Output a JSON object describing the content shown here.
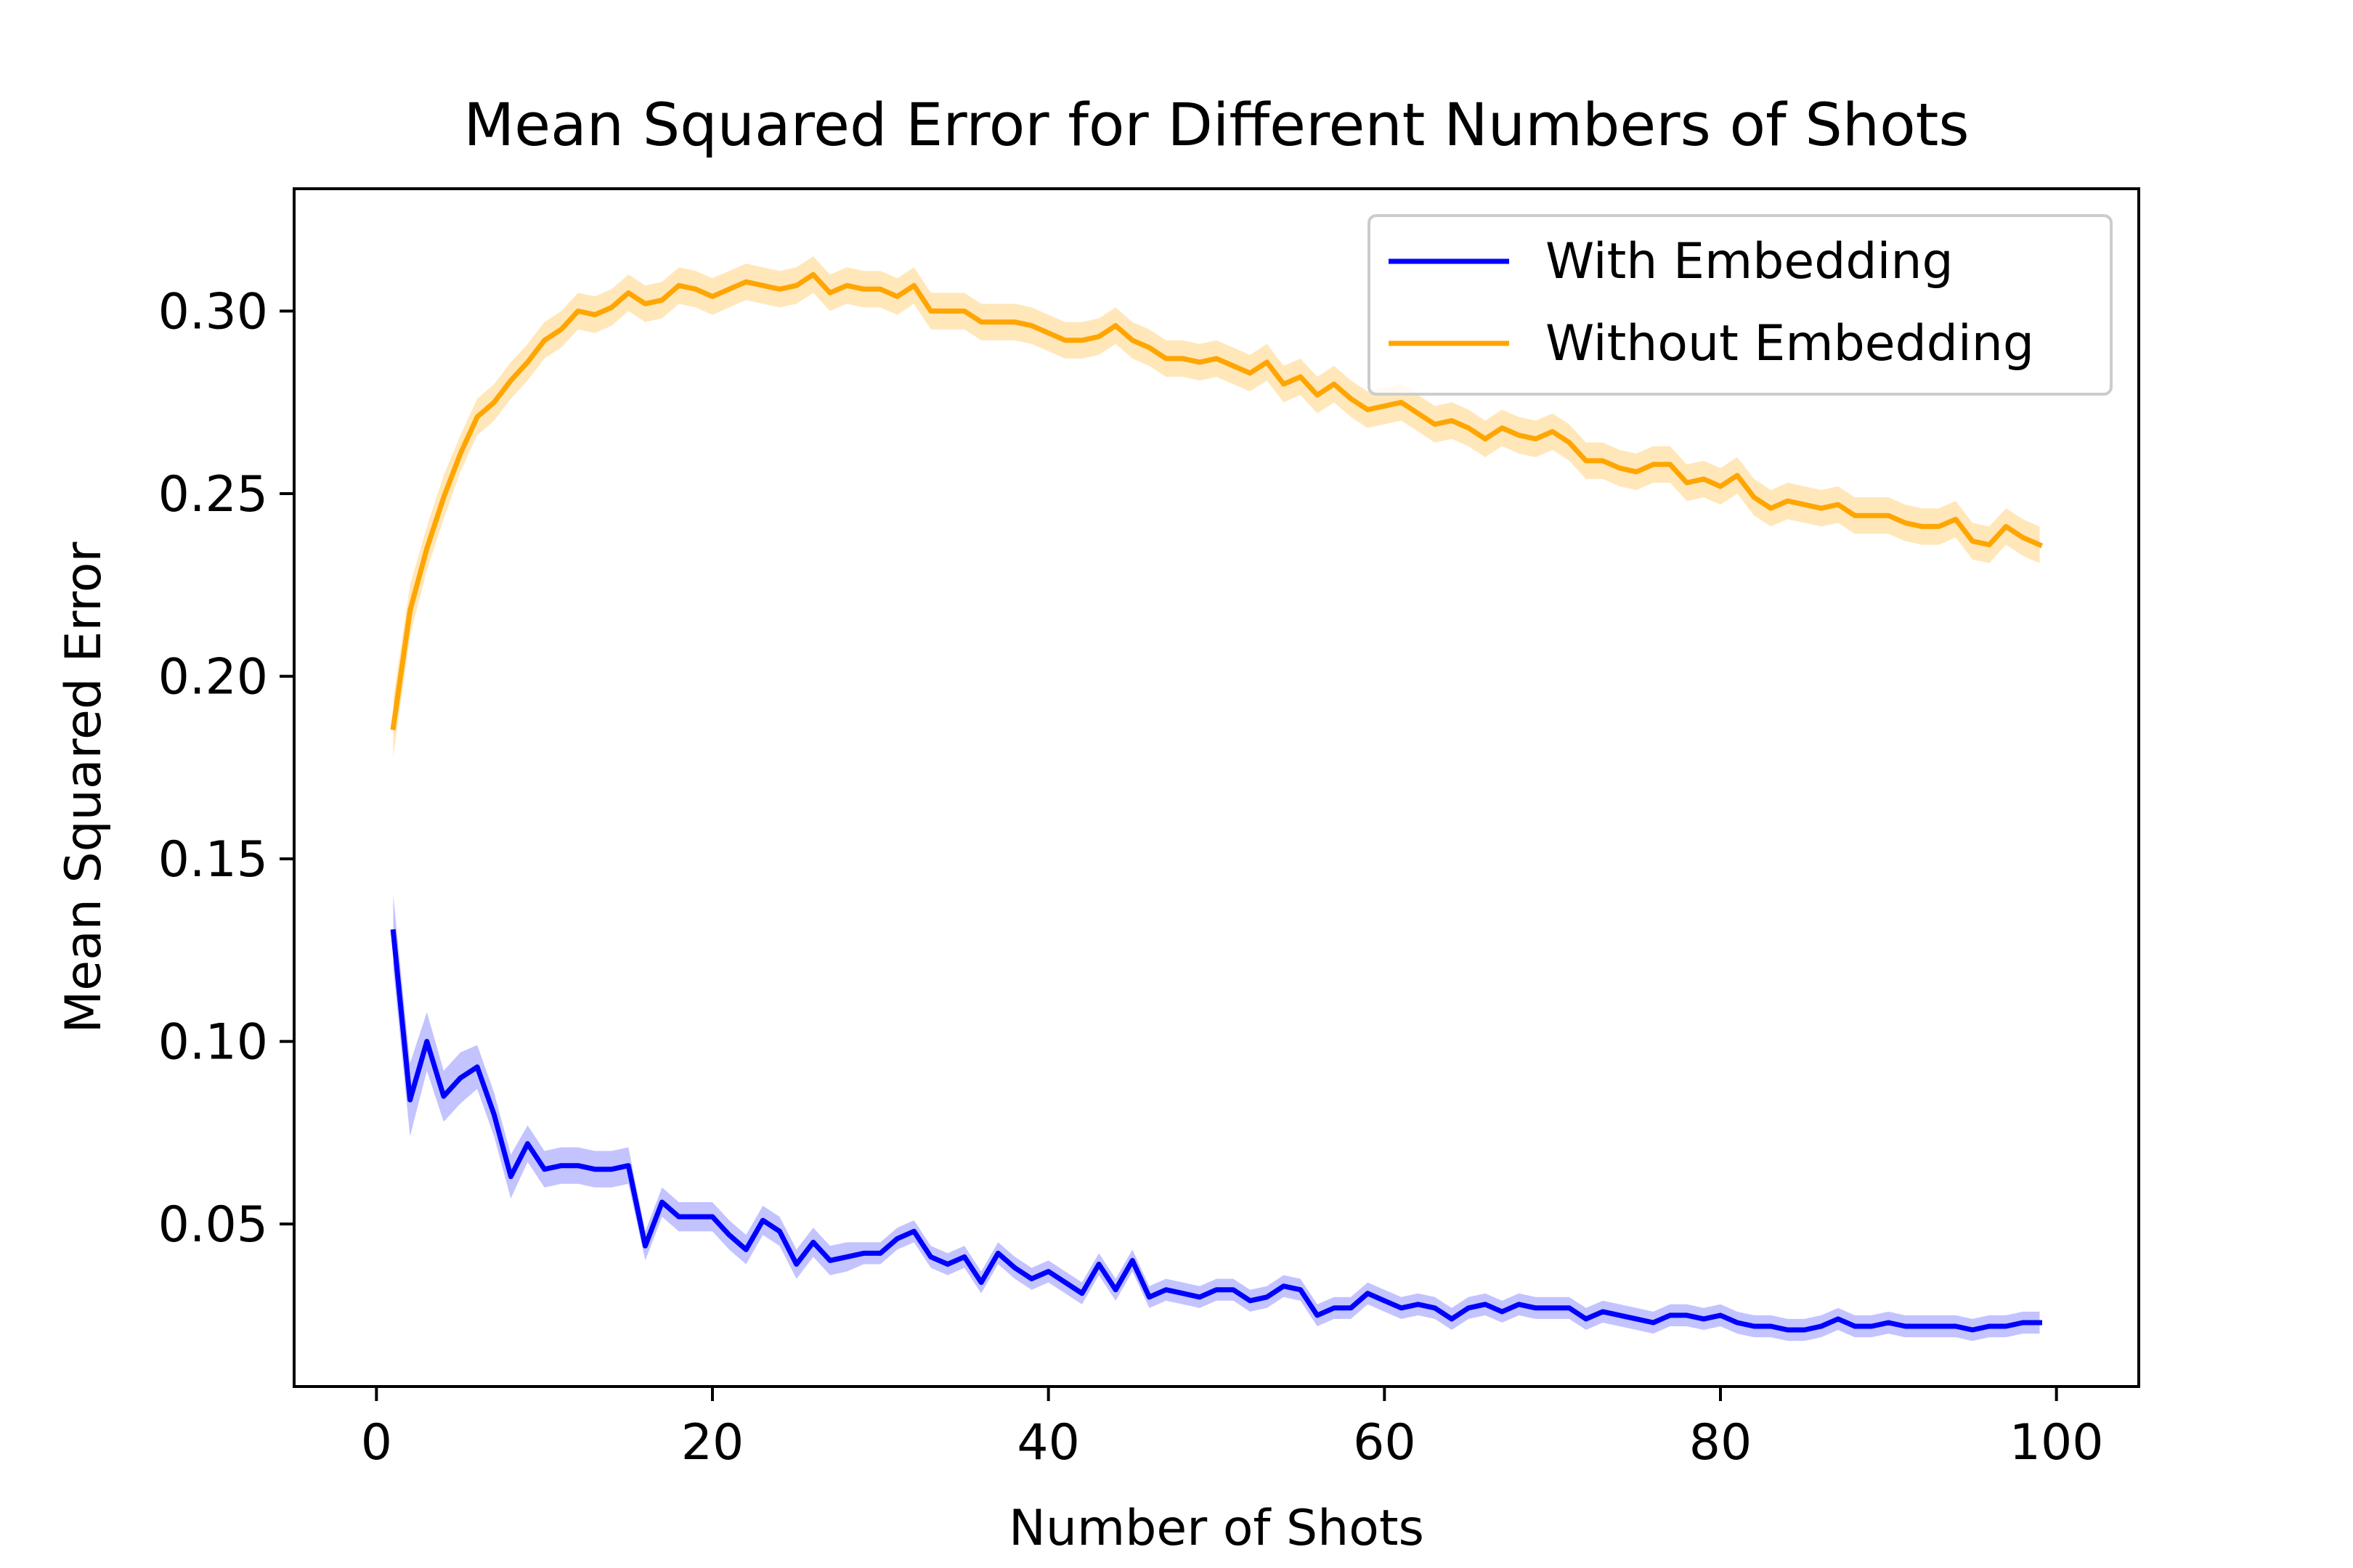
{
  "chart_data": {
    "type": "line",
    "title": "Mean Squared Error for Different Numbers of Shots",
    "xlabel": "Number of Shots",
    "ylabel": "Mean Squared Error",
    "xlim": [
      -4.9,
      104.9
    ],
    "ylim": [
      0.0055,
      0.3335
    ],
    "xticks": [
      0,
      20,
      40,
      60,
      80,
      100
    ],
    "xtick_labels": [
      "0",
      "20",
      "40",
      "60",
      "80",
      "100"
    ],
    "yticks": [
      0.05,
      0.1,
      0.15,
      0.2,
      0.25,
      0.3
    ],
    "ytick_labels": [
      "0.05",
      "0.10",
      "0.15",
      "0.20",
      "0.25",
      "0.30"
    ],
    "grid": false,
    "legend_position": "upper right",
    "x": [
      1,
      2,
      3,
      4,
      5,
      6,
      7,
      8,
      9,
      10,
      11,
      12,
      13,
      14,
      15,
      16,
      17,
      18,
      19,
      20,
      21,
      22,
      23,
      24,
      25,
      26,
      27,
      28,
      29,
      30,
      31,
      32,
      33,
      34,
      35,
      36,
      37,
      38,
      39,
      40,
      41,
      42,
      43,
      44,
      45,
      46,
      47,
      48,
      49,
      50,
      51,
      52,
      53,
      54,
      55,
      56,
      57,
      58,
      59,
      60,
      61,
      62,
      63,
      64,
      65,
      66,
      67,
      68,
      69,
      70,
      71,
      72,
      73,
      74,
      75,
      76,
      77,
      78,
      79,
      80,
      81,
      82,
      83,
      84,
      85,
      86,
      87,
      88,
      89,
      90,
      91,
      92,
      93,
      94,
      95,
      96,
      97,
      98,
      99
    ],
    "series": [
      {
        "name": "With Embedding",
        "color": "#0000ff",
        "band_color": "#7b7bff",
        "values": [
          0.13,
          0.084,
          0.1,
          0.085,
          0.09,
          0.093,
          0.08,
          0.063,
          0.072,
          0.065,
          0.066,
          0.066,
          0.065,
          0.065,
          0.066,
          0.044,
          0.056,
          0.052,
          0.052,
          0.052,
          0.047,
          0.043,
          0.051,
          0.048,
          0.039,
          0.045,
          0.04,
          0.041,
          0.042,
          0.042,
          0.046,
          0.048,
          0.041,
          0.039,
          0.041,
          0.034,
          0.042,
          0.038,
          0.035,
          0.037,
          0.034,
          0.031,
          0.039,
          0.032,
          0.04,
          0.03,
          0.032,
          0.031,
          0.03,
          0.032,
          0.032,
          0.029,
          0.03,
          0.033,
          0.032,
          0.025,
          0.027,
          0.027,
          0.031,
          0.029,
          0.027,
          0.028,
          0.027,
          0.024,
          0.027,
          0.028,
          0.026,
          0.028,
          0.027,
          0.027,
          0.027,
          0.024,
          0.026,
          0.025,
          0.024,
          0.023,
          0.025,
          0.025,
          0.024,
          0.025,
          0.023,
          0.022,
          0.022,
          0.021,
          0.021,
          0.022,
          0.024,
          0.022,
          0.022,
          0.023,
          0.022,
          0.022,
          0.022,
          0.022,
          0.021,
          0.022,
          0.022,
          0.023,
          0.023
        ],
        "band": [
          0.01,
          0.01,
          0.008,
          0.007,
          0.007,
          0.006,
          0.006,
          0.006,
          0.005,
          0.005,
          0.005,
          0.005,
          0.005,
          0.005,
          0.005,
          0.004,
          0.004,
          0.004,
          0.004,
          0.004,
          0.004,
          0.004,
          0.004,
          0.004,
          0.004,
          0.004,
          0.004,
          0.004,
          0.003,
          0.003,
          0.003,
          0.003,
          0.003,
          0.003,
          0.003,
          0.003,
          0.003,
          0.003,
          0.003,
          0.003,
          0.003,
          0.003,
          0.003,
          0.003,
          0.003,
          0.003,
          0.003,
          0.003,
          0.003,
          0.003,
          0.003,
          0.003,
          0.003,
          0.003,
          0.003,
          0.003,
          0.003,
          0.003,
          0.003,
          0.003,
          0.003,
          0.003,
          0.003,
          0.003,
          0.003,
          0.003,
          0.003,
          0.003,
          0.003,
          0.003,
          0.003,
          0.003,
          0.003,
          0.003,
          0.003,
          0.003,
          0.003,
          0.003,
          0.003,
          0.003,
          0.003,
          0.003,
          0.003,
          0.003,
          0.003,
          0.003,
          0.003,
          0.003,
          0.003,
          0.003,
          0.003,
          0.003,
          0.003,
          0.003,
          0.003,
          0.003,
          0.003,
          0.003,
          0.003
        ]
      },
      {
        "name": "Without Embedding",
        "color": "#ffa500",
        "band_color": "#ffc966",
        "values": [
          0.186,
          0.218,
          0.235,
          0.249,
          0.261,
          0.271,
          0.275,
          0.281,
          0.286,
          0.292,
          0.295,
          0.3,
          0.299,
          0.301,
          0.305,
          0.302,
          0.303,
          0.307,
          0.306,
          0.304,
          0.306,
          0.308,
          0.307,
          0.306,
          0.307,
          0.31,
          0.305,
          0.307,
          0.306,
          0.306,
          0.304,
          0.307,
          0.3,
          0.3,
          0.3,
          0.297,
          0.297,
          0.297,
          0.296,
          0.294,
          0.292,
          0.292,
          0.293,
          0.296,
          0.292,
          0.29,
          0.287,
          0.287,
          0.286,
          0.287,
          0.285,
          0.283,
          0.286,
          0.28,
          0.282,
          0.277,
          0.28,
          0.276,
          0.273,
          0.274,
          0.275,
          0.272,
          0.269,
          0.27,
          0.268,
          0.265,
          0.268,
          0.266,
          0.265,
          0.267,
          0.264,
          0.259,
          0.259,
          0.257,
          0.256,
          0.258,
          0.258,
          0.253,
          0.254,
          0.252,
          0.255,
          0.249,
          0.246,
          0.248,
          0.247,
          0.246,
          0.247,
          0.244,
          0.244,
          0.244,
          0.242,
          0.241,
          0.241,
          0.243,
          0.237,
          0.236,
          0.241,
          0.238,
          0.236
        ],
        "band": [
          0.008,
          0.007,
          0.006,
          0.006,
          0.005,
          0.005,
          0.005,
          0.005,
          0.005,
          0.005,
          0.005,
          0.005,
          0.005,
          0.005,
          0.005,
          0.005,
          0.005,
          0.005,
          0.005,
          0.005,
          0.005,
          0.005,
          0.005,
          0.005,
          0.005,
          0.005,
          0.005,
          0.005,
          0.005,
          0.005,
          0.005,
          0.005,
          0.005,
          0.005,
          0.005,
          0.005,
          0.005,
          0.005,
          0.005,
          0.005,
          0.005,
          0.005,
          0.005,
          0.005,
          0.005,
          0.005,
          0.005,
          0.005,
          0.005,
          0.005,
          0.005,
          0.005,
          0.005,
          0.005,
          0.005,
          0.005,
          0.005,
          0.005,
          0.005,
          0.005,
          0.005,
          0.005,
          0.005,
          0.005,
          0.005,
          0.005,
          0.005,
          0.005,
          0.005,
          0.005,
          0.005,
          0.005,
          0.005,
          0.005,
          0.005,
          0.005,
          0.005,
          0.005,
          0.005,
          0.005,
          0.005,
          0.005,
          0.005,
          0.005,
          0.005,
          0.005,
          0.005,
          0.005,
          0.005,
          0.005,
          0.005,
          0.005,
          0.005,
          0.005,
          0.005,
          0.005,
          0.005,
          0.005,
          0.005
        ]
      }
    ]
  }
}
